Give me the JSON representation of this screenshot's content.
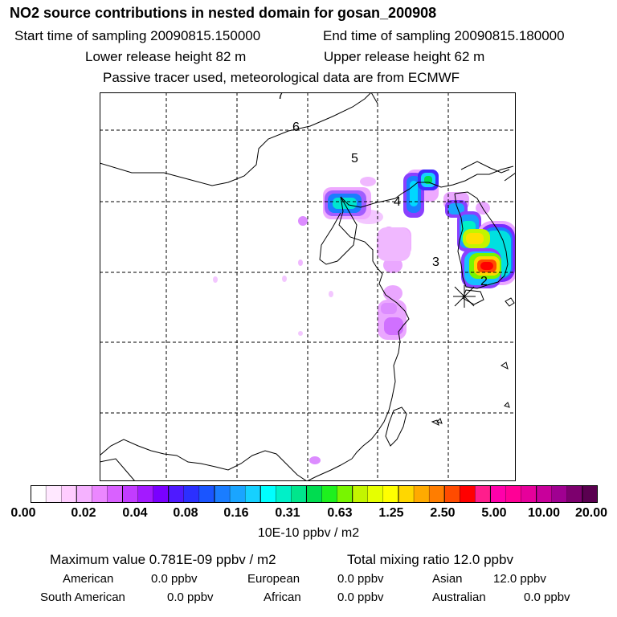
{
  "header": {
    "title": "NO2 source contributions in nested domain for gosan_200908",
    "start_time": "Start time of sampling 20090815.150000",
    "end_time": "End time of sampling 20090815.180000",
    "lower_release": "Lower release height   82 m",
    "upper_release": "Upper release height   62 m",
    "note": "Passive tracer used, meteorological data are from ECMWF"
  },
  "map": {
    "trajectory_labels": [
      "7",
      "6",
      "5",
      "4",
      "3",
      "2"
    ],
    "receptor_marker": "star-marker-icon",
    "colors": {
      "frame": "#000000",
      "grid": "#000000",
      "coast": "#000000"
    }
  },
  "colorbar": {
    "colors": [
      "#ffffff",
      "#ffe8ff",
      "#ffcdff",
      "#f5b2ff",
      "#eb87ff",
      "#d961ff",
      "#c23cff",
      "#a31aff",
      "#7a00ff",
      "#4f1aff",
      "#2b30ff",
      "#1a55ff",
      "#1a7dff",
      "#1aa5ff",
      "#16d0ff",
      "#00ffff",
      "#00f0c8",
      "#00e68c",
      "#00dc50",
      "#1ef01e",
      "#78f500",
      "#c3f500",
      "#e6ff00",
      "#ffff00",
      "#ffd700",
      "#ffaa00",
      "#ff7d00",
      "#ff4b00",
      "#ff0000",
      "#ff1e8c",
      "#ff00aa",
      "#ff0096",
      "#e6009b",
      "#c8009b",
      "#a00091",
      "#7d006e",
      "#5a0050"
    ],
    "tick_labels": [
      "0.00",
      "0.02",
      "0.04",
      "0.08",
      "0.16",
      "0.31",
      "0.63",
      "1.25",
      "2.50",
      "5.00",
      "10.00",
      "20.00"
    ],
    "units": "10E-10 ppbv / m2"
  },
  "stats": {
    "maximum": "Maximum value  0.781E-09 ppbv / m2",
    "total": "Total mixing ratio       12.0 ppbv",
    "american_label": "American",
    "american_value": "0.0 ppbv",
    "european_label": "European",
    "european_value": "0.0 ppbv",
    "asian_label": "Asian",
    "asian_value": "12.0 ppbv",
    "south_american_label": "South American",
    "south_american_value": "0.0 ppbv",
    "african_label": "African",
    "african_value": "0.0 ppbv",
    "australian_label": "Australian",
    "australian_value": "0.0 ppbv"
  }
}
